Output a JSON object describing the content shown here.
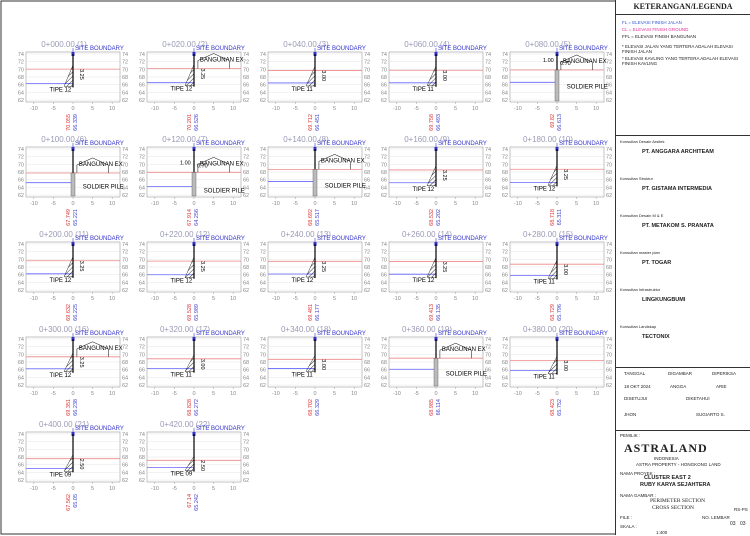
{
  "axis": {
    "xlim": [
      -12,
      12
    ],
    "ylim": [
      61.5,
      74.5
    ],
    "xticks": [
      -10,
      -5,
      0,
      5,
      10
    ],
    "yticks": [
      62,
      64,
      66,
      68,
      70,
      72,
      74
    ]
  },
  "labels": {
    "site_boundary": "SITE BOUNDARY",
    "building": "BANGUNAN EX",
    "pile": "SOLDIER PILE"
  },
  "sections": [
    {
      "title": "0+000.00 (1)",
      "elev": [
        70.055,
        66.339
      ],
      "tipe": "TIPE 12",
      "dim": "3.25"
    },
    {
      "title": "0+020.00 (2)",
      "elev": [
        70.201,
        66.526
      ],
      "tipe": "TIPE 12",
      "dim": "3.25",
      "building": true
    },
    {
      "title": "0+040.00 (3)",
      "elev": [
        69.712,
        66.451
      ],
      "tipe": "TIPE 11",
      "dim": "3.00"
    },
    {
      "title": "0+060.00 (4)",
      "elev": [
        69.758,
        66.493
      ],
      "tipe": "TIPE 11",
      "dim": "3.00"
    },
    {
      "title": "0+080.00 (5)",
      "elev": [
        69.82,
        66.613
      ],
      "building": true,
      "pile": true,
      "dims": [
        "1.00",
        "0.70"
      ]
    },
    {
      "title": "0+100.00 (6)",
      "elev": [
        67.749,
        65.221
      ],
      "building": true,
      "pile": true
    },
    {
      "title": "0+120.00 (7)",
      "elev": [
        67.914,
        64.256
      ],
      "building": true,
      "pile": true,
      "dims": [
        "1.00",
        "0.70"
      ]
    },
    {
      "title": "0+140.00 (8)",
      "elev": [
        68.692,
        65.517
      ],
      "building": true,
      "pile": true
    },
    {
      "title": "0+160.00 (9)",
      "elev": [
        68.532,
        65.202
      ],
      "tipe": "TIPE 12",
      "dim": "3.25"
    },
    {
      "title": "0+180.00 (10)",
      "elev": [
        68.718,
        65.311
      ],
      "tipe": "TIPE 12",
      "dim": "3.25"
    },
    {
      "title": "0+200.00 (11)",
      "elev": [
        69.632,
        66.225
      ],
      "tipe": "TIPE 12",
      "dim": "3.25"
    },
    {
      "title": "0+220.00 (12)",
      "elev": [
        69.528,
        65.989
      ],
      "tipe": "TIPE 12",
      "dim": "3.25"
    },
    {
      "title": "0+240.00 (13)",
      "elev": [
        69.481,
        66.177
      ],
      "tipe": "TIPE 12",
      "dim": "3.25"
    },
    {
      "title": "0+260.00 (14)",
      "elev": [
        69.413,
        66.135
      ],
      "tipe": "TIPE 12",
      "dim": "3.25"
    },
    {
      "title": "0+280.00 (15)",
      "elev": [
        68.729,
        65.796
      ],
      "tipe": "TIPE 11",
      "dim": "3.00"
    },
    {
      "title": "0+300.00 (16)",
      "elev": [
        69.351,
        66.238
      ],
      "tipe": "TIPE 12",
      "dim": "3.25",
      "building": true
    },
    {
      "title": "0+320.00 (17)",
      "elev": [
        68.828,
        66.272
      ],
      "tipe": "TIPE 11",
      "dim": "3.00"
    },
    {
      "title": "0+340.00 (18)",
      "elev": [
        68.702,
        66.329
      ],
      "tipe": "TIPE 11",
      "dim": "3.00"
    },
    {
      "title": "0+360.00 (19)",
      "elev": [
        68.985,
        66.114
      ],
      "building": true,
      "pile": true
    },
    {
      "title": "0+380.00 (20)",
      "elev": [
        68.423,
        65.752
      ],
      "tipe": "TIPE 11",
      "dim": "3.00"
    },
    {
      "title": "0+400.00 (21)",
      "elev": [
        67.562,
        65.05
      ],
      "tipe": "TIPE 09",
      "dim": "2.50"
    },
    {
      "title": "0+420.00 (22)",
      "elev": [
        67.14,
        65.242
      ],
      "tipe": "TIPE 09",
      "dim": "2.50"
    }
  ],
  "panel": {
    "header": "KETERANGAN/LEGENDA",
    "legend": [
      "FL = ELEVASI FINISH JALAN",
      "CL = ELEVASI FINISH GROUND",
      "FFL = ELEVASI FINISH BANGUNAN"
    ],
    "notes": [
      "* ELEVASI JALAN YANG TERTERA ADALAH ELEVASI FINISH JALAN",
      "* ELEVASI KAVLING YANG TERTERA ADALAH ELEVASI FINISH KAVLING"
    ],
    "consultants": [
      {
        "role": "Konsultan Desain Arsitek",
        "name": "PT. ANGGARA ARCHITEAM"
      },
      {
        "role": "Konsultan Struktur",
        "name": "PT. GISTAMA INTERMEDIA"
      },
      {
        "role": "Konsultan Desain M & E",
        "name": "PT. METAKOM S. PRANATA"
      },
      {
        "role": "Konsultan master plan",
        "name": "PT. TOGAR"
      },
      {
        "role": "Konsultan Infrastruktur",
        "name": "LINGKUNGBUMI"
      },
      {
        "role": "Konsultan Landskap",
        "name": "TECTONIX"
      }
    ],
    "table": [
      [
        "TANGGAL",
        "DIGAMBAR",
        "DIPERIKSA"
      ],
      [
        "18 OKT 2024",
        "ANGGA",
        "ARIE"
      ],
      [
        "DISETUJUI",
        "DIKETAHUI"
      ],
      [
        "JHON",
        "SUGIARTO S."
      ]
    ],
    "owner_label": "PEMILIK :",
    "owner": "ASTRALAND",
    "owner_country": "INDONESIA",
    "owner_sub": "ASTRA PROPERTY - HONGKONG LAND",
    "project_label": "NAMA PROYEK :",
    "project": [
      "CLUSTER EAST 2",
      "RUBY KARYA SEJAHTERA"
    ],
    "drawing_label": "NAMA GAMBAR :",
    "drawing": [
      "PERIMETER SECTION",
      "CROSS SECTION"
    ],
    "file_label": "FILE :",
    "scale_label": "SKALA :",
    "scale": "1:400",
    "sheet_label": "NO. LEMBAR",
    "sheet_code": "RS-PS",
    "sheet": [
      "03",
      "03"
    ]
  }
}
